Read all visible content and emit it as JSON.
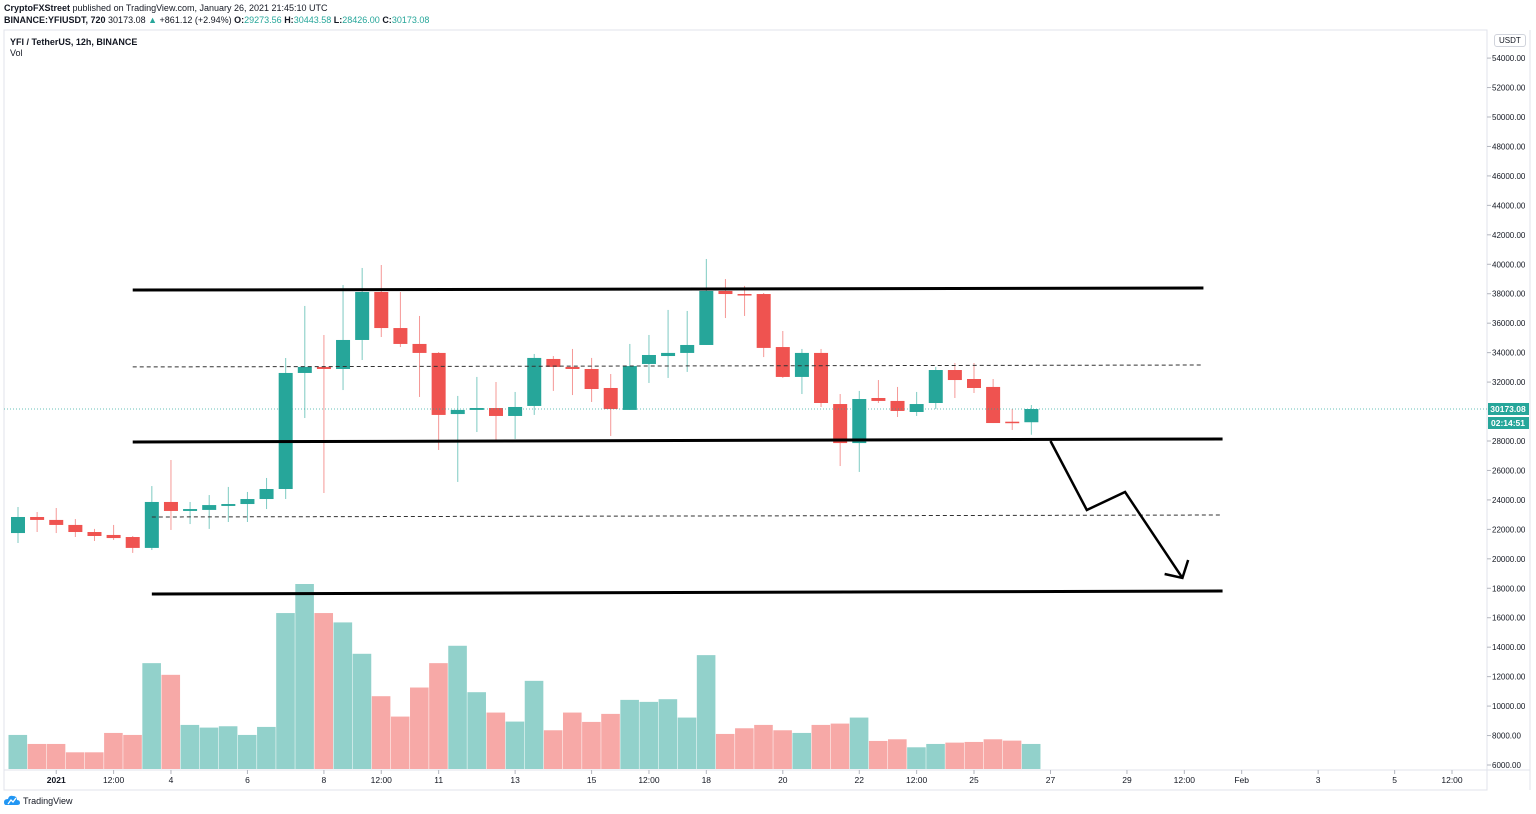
{
  "header": {
    "publisher": "CryptoFXStreet",
    "published_text": "published on TradingView.com, January 26, 2021 21:45:10 UTC",
    "symbol": "BINANCE:YFIUSDT, 720",
    "last": "30173.08",
    "change": "+861.12 (+2.94%)",
    "o_label": "O:",
    "o": "29273.56",
    "h_label": "H:",
    "h": "30443.58",
    "l_label": "L:",
    "l": "28426.00",
    "c_label": "C:",
    "c": "30173.08"
  },
  "legend": {
    "title": "YFI / TetherUS, 12h, BINANCE",
    "indicator": "Vol"
  },
  "price_axis": {
    "currency": "USDT",
    "last_price": "30173.08",
    "countdown": "02:14:51"
  },
  "footer": {
    "brand": "TradingView"
  },
  "colors": {
    "up": "#26a69a",
    "down": "#ef5350",
    "vol_up": "#92d1cb",
    "vol_down": "#f7a9a7",
    "drawing": "#000000"
  },
  "chart_data": {
    "type": "candlestick",
    "title": "YFI / TetherUS, 12h, BINANCE",
    "ylabel": "USDT",
    "ylim": [
      5000,
      55000
    ],
    "bar_interval": "12h",
    "first_bar": "2020-12-31 00:00",
    "y_ticks": [
      "54000.00",
      "52000.00",
      "50000.00",
      "48000.00",
      "46000.00",
      "44000.00",
      "42000.00",
      "40000.00",
      "38000.00",
      "36000.00",
      "34000.00",
      "32000.00",
      "28000.00",
      "26000.00",
      "24000.00",
      "22000.00",
      "20000.00",
      "18000.00",
      "16000.00",
      "14000.00",
      "12000.00",
      "10000.00",
      "8000.00",
      "6000.00"
    ],
    "x_ticks": [
      {
        "label": "2021",
        "bar": 2
      },
      {
        "label": "12:00",
        "bar": 5
      },
      {
        "label": "4",
        "bar": 8
      },
      {
        "label": "6",
        "bar": 12
      },
      {
        "label": "8",
        "bar": 16
      },
      {
        "label": "12:00",
        "bar": 19
      },
      {
        "label": "11",
        "bar": 22
      },
      {
        "label": "13",
        "bar": 26
      },
      {
        "label": "15",
        "bar": 30
      },
      {
        "label": "12:00",
        "bar": 33
      },
      {
        "label": "18",
        "bar": 36
      },
      {
        "label": "20",
        "bar": 40
      },
      {
        "label": "22",
        "bar": 44
      },
      {
        "label": "12:00",
        "bar": 47
      },
      {
        "label": "25",
        "bar": 50
      },
      {
        "label": "27",
        "bar": 54
      },
      {
        "label": "29",
        "bar": 58
      },
      {
        "label": "12:00",
        "bar": 61
      },
      {
        "label": "Feb",
        "bar": 64
      },
      {
        "label": "3",
        "bar": 68
      },
      {
        "label": "5",
        "bar": 72
      },
      {
        "label": "12:00",
        "bar": 75
      }
    ],
    "ohlc": [
      [
        21750,
        23520,
        21070,
        22840
      ],
      [
        22840,
        23180,
        21820,
        22640
      ],
      [
        22640,
        23450,
        21750,
        22300
      ],
      [
        22300,
        22700,
        21480,
        21820
      ],
      [
        21820,
        22030,
        21210,
        21550
      ],
      [
        21620,
        22300,
        21280,
        21410
      ],
      [
        21480,
        21550,
        20400,
        20740
      ],
      [
        20740,
        24940,
        20600,
        23860
      ],
      [
        23860,
        26710,
        21960,
        23250
      ],
      [
        23250,
        23860,
        22360,
        23380
      ],
      [
        23320,
        24330,
        22030,
        23650
      ],
      [
        23590,
        24880,
        22500,
        23720
      ],
      [
        23720,
        24540,
        22500,
        24060
      ],
      [
        24060,
        25490,
        23380,
        24740
      ],
      [
        24740,
        33640,
        24060,
        32620
      ],
      [
        32620,
        37170,
        29560,
        33030
      ],
      [
        33030,
        35200,
        24470,
        32890
      ],
      [
        32890,
        38590,
        31460,
        34860
      ],
      [
        34860,
        39750,
        33500,
        38120
      ],
      [
        38120,
        39950,
        35060,
        35670
      ],
      [
        35670,
        38120,
        34380,
        34590
      ],
      [
        34590,
        36490,
        30990,
        33980
      ],
      [
        33980,
        34040,
        27390,
        29770
      ],
      [
        29830,
        31060,
        25220,
        30110
      ],
      [
        30110,
        32350,
        28610,
        30240
      ],
      [
        30240,
        32010,
        28070,
        29700
      ],
      [
        29700,
        31330,
        28140,
        30310
      ],
      [
        30380,
        33910,
        29770,
        33640
      ],
      [
        33570,
        33770,
        31400,
        33030
      ],
      [
        33030,
        34250,
        31120,
        32890
      ],
      [
        32890,
        33640,
        30650,
        31530
      ],
      [
        31600,
        32550,
        28340,
        30170
      ],
      [
        30110,
        34590,
        30110,
        33090
      ],
      [
        33230,
        35200,
        31940,
        33840
      ],
      [
        33770,
        36900,
        32280,
        33980
      ],
      [
        33980,
        36830,
        32690,
        34520
      ],
      [
        34520,
        40360,
        34520,
        38190
      ],
      [
        38190,
        39000,
        36350,
        37980
      ],
      [
        37980,
        38530,
        36490,
        37910
      ],
      [
        37980,
        38050,
        33700,
        34320
      ],
      [
        34380,
        35470,
        32280,
        32350
      ],
      [
        32350,
        34250,
        31190,
        33980
      ],
      [
        33980,
        34250,
        30310,
        30580
      ],
      [
        30510,
        31190,
        26300,
        27860
      ],
      [
        27860,
        31400,
        25900,
        30850
      ],
      [
        30920,
        32140,
        30580,
        30720
      ],
      [
        30720,
        31670,
        29630,
        30040
      ],
      [
        29970,
        31330,
        29700,
        30510
      ],
      [
        30580,
        33030,
        30170,
        32820
      ],
      [
        32820,
        33300,
        30920,
        32140
      ],
      [
        32210,
        33300,
        31260,
        31600
      ],
      [
        31670,
        32210,
        29220,
        29220
      ],
      [
        29310,
        30170,
        28750,
        29274
      ],
      [
        29274,
        30444,
        28426,
        30173
      ]
    ],
    "volume_relative": [
      102,
      75,
      75,
      50,
      50,
      108,
      102,
      317,
      282,
      132,
      124,
      128,
      102,
      126,
      467,
      554,
      467,
      439,
      345,
      218,
      157,
      244,
      317,
      369,
      230,
      169,
      142,
      264,
      116,
      169,
      141,
      165,
      207,
      201,
      209,
      154,
      341,
      105,
      122,
      132,
      116,
      108,
      132,
      136,
      154,
      84,
      89,
      65,
      75,
      79,
      81,
      89,
      85,
      75
    ],
    "last_price": 30173.08,
    "drawings": {
      "solid_lines": [
        {
          "name": "resistance-line",
          "from": [
            6,
            38250
          ],
          "to": [
            62,
            38390
          ]
        },
        {
          "name": "support-line",
          "from": [
            6,
            27930
          ],
          "to": [
            63,
            28140
          ]
        },
        {
          "name": "target-line",
          "from": [
            7,
            17610
          ],
          "to": [
            63,
            17815
          ]
        }
      ],
      "dashed_lines": [
        {
          "name": "mid-upper-dashed-line",
          "from": [
            6,
            33030
          ],
          "to": [
            62,
            33160
          ]
        },
        {
          "name": "lower-dashed-line",
          "from": [
            7,
            22840
          ],
          "to": [
            63,
            22975
          ]
        }
      ],
      "arrow_path": [
        [
          54.0,
          28000
        ],
        [
          55.9,
          23315
        ],
        [
          57.9,
          24540
        ],
        [
          60.9,
          18700
        ]
      ],
      "arrow_head": [
        [
          59.97,
          18970
        ],
        [
          60.9,
          18700
        ],
        [
          61.2,
          19920
        ]
      ]
    }
  }
}
